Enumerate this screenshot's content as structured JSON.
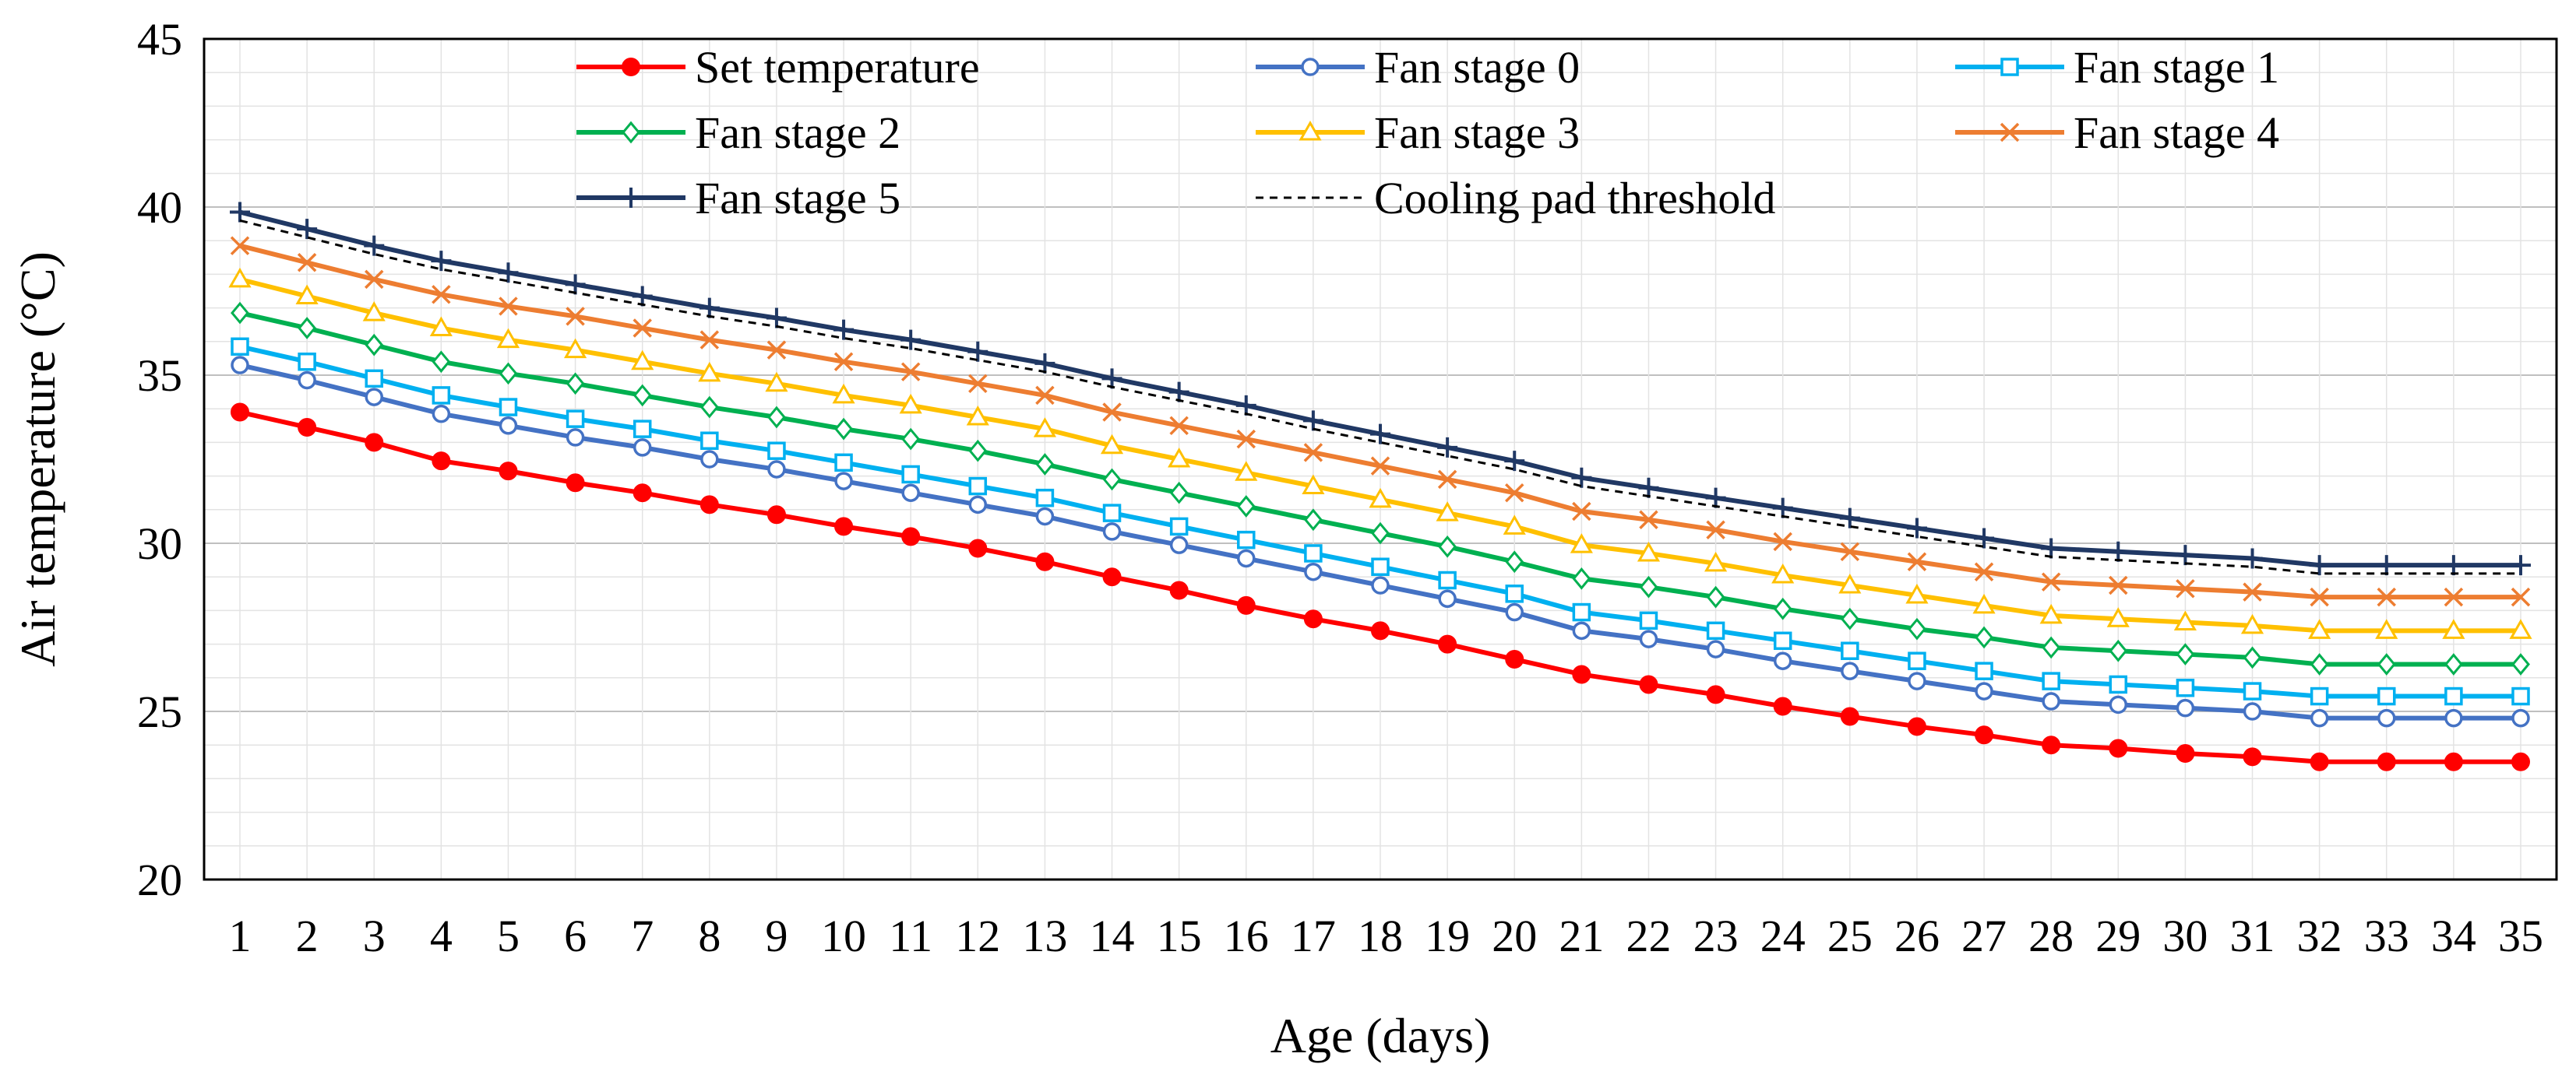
{
  "chart_data": {
    "type": "line",
    "title": "",
    "xlabel": "Age (days)",
    "ylabel": "Air temperature (°C)",
    "ylim": [
      20,
      45
    ],
    "yticks": [
      20,
      25,
      30,
      35,
      40,
      45
    ],
    "grid": true,
    "legend_position": "top",
    "x": [
      1,
      2,
      3,
      4,
      5,
      6,
      7,
      8,
      9,
      10,
      11,
      12,
      13,
      14,
      15,
      16,
      17,
      18,
      19,
      20,
      21,
      22,
      23,
      24,
      25,
      26,
      27,
      28,
      29,
      30,
      31,
      32,
      33,
      34,
      35
    ],
    "series": [
      {
        "name": "Set temperature",
        "color": "#ff0000",
        "marker": "filled-circle",
        "dash": false,
        "values": [
          33.9,
          33.45,
          33.0,
          32.45,
          32.15,
          31.8,
          31.5,
          31.15,
          30.85,
          30.5,
          30.2,
          29.85,
          29.45,
          29.0,
          28.6,
          28.15,
          27.75,
          27.4,
          27.0,
          26.55,
          26.1,
          25.8,
          25.5,
          25.15,
          24.85,
          24.55,
          24.3,
          24.0,
          23.9,
          23.75,
          23.65,
          23.5,
          23.5,
          23.5,
          23.5
        ]
      },
      {
        "name": "Fan stage 0",
        "color": "#4472c4",
        "marker": "open-circle",
        "dash": false,
        "values": [
          35.3,
          34.85,
          34.35,
          33.85,
          33.5,
          33.15,
          32.85,
          32.5,
          32.2,
          31.85,
          31.5,
          31.15,
          30.8,
          30.35,
          29.95,
          29.55,
          29.15,
          28.75,
          28.35,
          27.95,
          27.4,
          27.15,
          26.85,
          26.5,
          26.2,
          25.9,
          25.6,
          25.3,
          25.2,
          25.1,
          25.0,
          24.8,
          24.8,
          24.8,
          24.8
        ]
      },
      {
        "name": "Fan stage 1",
        "color": "#00b0f0",
        "marker": "open-square",
        "dash": false,
        "values": [
          35.85,
          35.4,
          34.9,
          34.4,
          34.05,
          33.7,
          33.4,
          33.05,
          32.75,
          32.4,
          32.05,
          31.7,
          31.35,
          30.9,
          30.5,
          30.1,
          29.7,
          29.3,
          28.9,
          28.5,
          27.95,
          27.7,
          27.4,
          27.1,
          26.8,
          26.5,
          26.2,
          25.9,
          25.8,
          25.7,
          25.6,
          25.45,
          25.45,
          25.45,
          25.45
        ]
      },
      {
        "name": "Fan stage 2",
        "color": "#00b050",
        "marker": "open-diamond",
        "dash": false,
        "values": [
          36.85,
          36.4,
          35.9,
          35.4,
          35.05,
          34.75,
          34.4,
          34.05,
          33.75,
          33.4,
          33.1,
          32.75,
          32.35,
          31.9,
          31.5,
          31.1,
          30.7,
          30.3,
          29.9,
          29.45,
          28.95,
          28.7,
          28.4,
          28.05,
          27.75,
          27.45,
          27.2,
          26.9,
          26.8,
          26.7,
          26.6,
          26.4,
          26.4,
          26.4,
          26.4
        ]
      },
      {
        "name": "Fan stage 3",
        "color": "#ffc000",
        "marker": "open-triangle",
        "dash": false,
        "values": [
          37.85,
          37.35,
          36.85,
          36.4,
          36.05,
          35.75,
          35.4,
          35.05,
          34.75,
          34.4,
          34.1,
          33.75,
          33.4,
          32.9,
          32.5,
          32.1,
          31.7,
          31.3,
          30.9,
          30.5,
          29.95,
          29.7,
          29.4,
          29.05,
          28.75,
          28.45,
          28.15,
          27.85,
          27.75,
          27.65,
          27.55,
          27.4,
          27.4,
          27.4,
          27.4
        ]
      },
      {
        "name": "Fan stage 4",
        "color": "#ed7d31",
        "marker": "x",
        "dash": false,
        "values": [
          38.85,
          38.35,
          37.85,
          37.4,
          37.05,
          36.75,
          36.4,
          36.05,
          35.75,
          35.4,
          35.1,
          34.75,
          34.4,
          33.9,
          33.5,
          33.1,
          32.7,
          32.3,
          31.9,
          31.5,
          30.95,
          30.7,
          30.4,
          30.05,
          29.75,
          29.45,
          29.15,
          28.85,
          28.75,
          28.65,
          28.55,
          28.4,
          28.4,
          28.4,
          28.4
        ]
      },
      {
        "name": "Fan stage 5",
        "color": "#203864",
        "marker": "plus",
        "dash": false,
        "values": [
          39.85,
          39.35,
          38.85,
          38.4,
          38.05,
          37.7,
          37.35,
          37.0,
          36.7,
          36.35,
          36.05,
          35.7,
          35.35,
          34.9,
          34.5,
          34.1,
          33.65,
          33.25,
          32.85,
          32.45,
          31.95,
          31.65,
          31.35,
          31.05,
          30.75,
          30.45,
          30.15,
          29.85,
          29.75,
          29.65,
          29.55,
          29.35,
          29.35,
          29.35,
          29.35
        ]
      },
      {
        "name": "Cooling pad threshold",
        "color": "#000000",
        "marker": "none",
        "dash": true,
        "values": [
          39.6,
          39.1,
          38.6,
          38.15,
          37.8,
          37.45,
          37.1,
          36.75,
          36.45,
          36.1,
          35.8,
          35.45,
          35.1,
          34.65,
          34.25,
          33.85,
          33.4,
          33.0,
          32.6,
          32.2,
          31.7,
          31.4,
          31.1,
          30.8,
          30.5,
          30.2,
          29.9,
          29.6,
          29.5,
          29.4,
          29.3,
          29.1,
          29.1,
          29.1,
          29.1
        ]
      }
    ]
  }
}
